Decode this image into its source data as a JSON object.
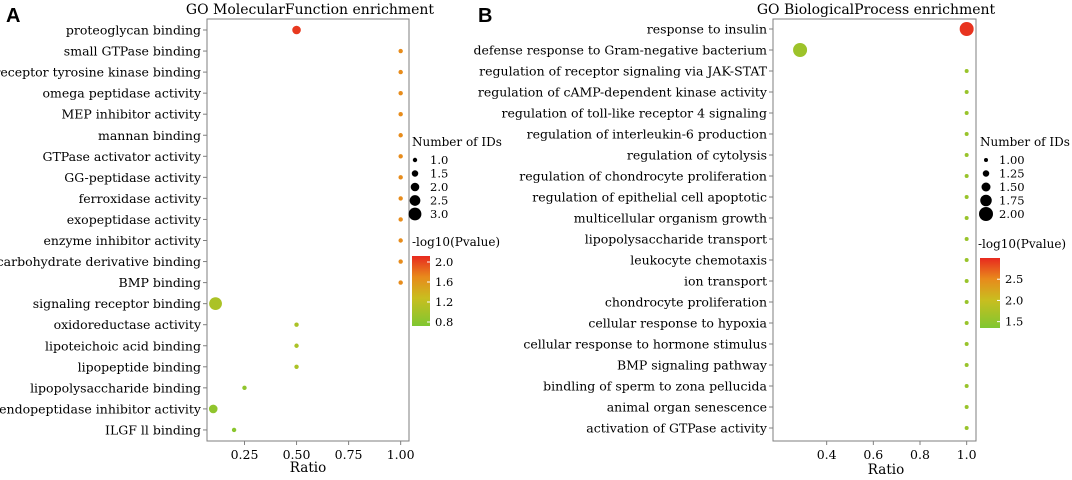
{
  "chart_data": [
    {
      "panel": "A",
      "type": "scatter",
      "title": "GO MolecularFunction enrichment",
      "xlabel": "Ratio",
      "xlim": [
        0.07,
        1.04
      ],
      "xticks": [
        0.25,
        0.5,
        0.75,
        1.0
      ],
      "xtick_labels": [
        "0.25",
        "0.50",
        "0.75",
        "1.00"
      ],
      "categories": [
        "proteoglycan binding",
        "small GTPase binding",
        "receptor tyrosine kinase binding",
        "omega peptidase activity",
        "MEP inhibitor activity",
        "mannan binding",
        "GTPase activator activity",
        "GG-peptidase activity",
        "ferroxidase activity",
        "exopeptidase activity",
        "enzyme inhibitor activity",
        "carbohydrate derivative binding",
        "BMP binding",
        "signaling receptor binding",
        "oxidoreductase activity",
        "lipoteichoic acid binding",
        "lipopeptide binding",
        "lipopolysaccharide binding",
        "endopeptidase inhibitor activity",
        "ILGF ll binding"
      ],
      "ratio": [
        0.5,
        1.0,
        1.0,
        1.0,
        1.0,
        1.0,
        1.0,
        1.0,
        1.0,
        1.0,
        1.0,
        1.0,
        1.0,
        0.111,
        0.5,
        0.5,
        0.5,
        0.25,
        0.1,
        0.2
      ],
      "count": [
        2,
        1,
        1,
        1,
        1,
        1,
        1,
        1,
        1,
        1,
        1,
        1,
        1,
        3,
        1,
        1,
        1,
        1,
        2,
        1
      ],
      "neglog10p": [
        2.05,
        1.68,
        1.68,
        1.68,
        1.68,
        1.68,
        1.68,
        1.68,
        1.68,
        1.68,
        1.68,
        1.68,
        1.68,
        1.05,
        1.05,
        1.05,
        1.05,
        0.85,
        0.85,
        0.8
      ],
      "size_legend": {
        "title": "Number of IDs",
        "labels": [
          "1.0",
          "1.5",
          "2.0",
          "2.5",
          "3.0"
        ],
        "values": [
          1.0,
          1.5,
          2.0,
          2.5,
          3.0
        ]
      },
      "color_legend": {
        "title": "-log10(Pvalue)",
        "range": [
          0.72,
          2.12
        ],
        "labels": [
          "2.0",
          "1.6",
          "1.2",
          "0.8"
        ],
        "values": [
          2.0,
          1.6,
          1.2,
          0.8
        ]
      }
    },
    {
      "panel": "B",
      "type": "scatter",
      "title": "GO BiologicalProcess enrichment",
      "xlabel": "Ratio",
      "xlim": [
        0.17,
        1.04
      ],
      "xticks": [
        0.4,
        0.6,
        0.8,
        1.0
      ],
      "xtick_labels": [
        "0.4",
        "0.6",
        "0.8",
        "1.0"
      ],
      "categories": [
        "response to insulin",
        "defense response to Gram-negative bacterium",
        "regulation of receptor signaling via JAK-STAT",
        "regulation of cAMP-dependent kinase activity",
        "regulation of toll-like receptor 4 signaling",
        "regulation of interleukin-6 production",
        "regulation of cytolysis",
        "regulation of chondrocyte proliferation",
        "regulation of epithelial cell apoptotic",
        "multicellular organism growth",
        "lipopolysaccharide transport",
        "leukocyte chemotaxis",
        "ion transport",
        "chondrocyte proliferation",
        "cellular response to hypoxia",
        "cellular response to hormone stimulus",
        "BMP signaling pathway",
        "bindling of sperm to zona pellucida",
        "animal organ senescence",
        "activation of GTPase activity"
      ],
      "ratio": [
        1.0,
        0.286,
        1.0,
        1.0,
        1.0,
        1.0,
        1.0,
        1.0,
        1.0,
        1.0,
        1.0,
        1.0,
        1.0,
        1.0,
        1.0,
        1.0,
        1.0,
        1.0,
        1.0,
        1.0
      ],
      "count": [
        2,
        2,
        1,
        1,
        1,
        1,
        1,
        1,
        1,
        1,
        1,
        1,
        1,
        1,
        1,
        1,
        1,
        1,
        1,
        1
      ],
      "neglog10p": [
        2.95,
        1.62,
        1.58,
        1.58,
        1.58,
        1.58,
        1.58,
        1.58,
        1.58,
        1.58,
        1.58,
        1.58,
        1.58,
        1.58,
        1.58,
        1.58,
        1.58,
        1.58,
        1.58,
        1.58
      ],
      "size_legend": {
        "title": "Number of IDs",
        "labels": [
          "1.00",
          "1.25",
          "1.50",
          "1.75",
          "2.00"
        ],
        "values": [
          1.0,
          1.25,
          1.5,
          1.75,
          2.0
        ]
      },
      "color_legend": {
        "title": "-log10(Pvalue)",
        "range": [
          1.35,
          3.0
        ],
        "labels": [
          "2.5",
          "2.0",
          "1.5"
        ],
        "values": [
          2.5,
          2.0,
          1.5
        ]
      }
    }
  ]
}
